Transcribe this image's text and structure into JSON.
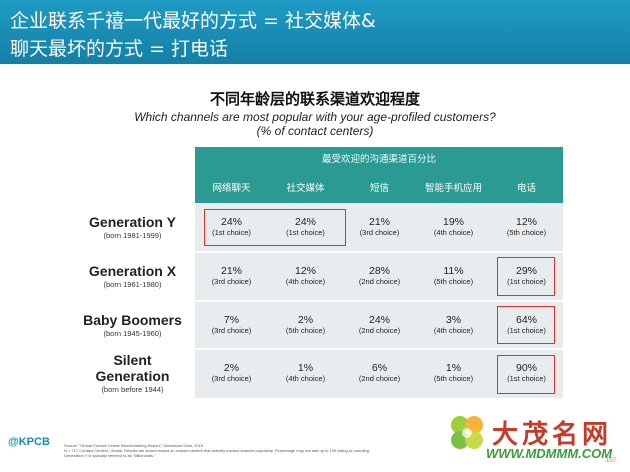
{
  "header": {
    "line1": "企业联系千禧一代最好的方式 = 社交媒体&",
    "line2": "聊天最坏的方式 = 打电话"
  },
  "title_cn": "不同年龄层的联系渠道欢迎程度",
  "subtitle_en_1": "Which channels are most popular with your age-profiled customers?",
  "subtitle_en_2": "(% of contact centers)",
  "table": {
    "caption": "最受欢迎的沟通渠道百分比",
    "columns": [
      "网络聊天",
      "社交媒体",
      "短信",
      "智能手机应用",
      "电话"
    ],
    "rows": [
      {
        "name": "Generation Y",
        "born": "(born 1981-1999)",
        "cells": [
          {
            "pct": "24%",
            "rank": "(1st choice)"
          },
          {
            "pct": "24%",
            "rank": "(1st choice)"
          },
          {
            "pct": "21%",
            "rank": "(3rd choice)"
          },
          {
            "pct": "19%",
            "rank": "(4th choice)"
          },
          {
            "pct": "12%",
            "rank": "(5th choice)"
          }
        ]
      },
      {
        "name": "Generation X",
        "born": "(born 1961-1980)",
        "cells": [
          {
            "pct": "21%",
            "rank": "(3rd choice)"
          },
          {
            "pct": "12%",
            "rank": "(4th choice)"
          },
          {
            "pct": "28%",
            "rank": "(2nd choice)"
          },
          {
            "pct": "11%",
            "rank": "(5th choice)"
          },
          {
            "pct": "29%",
            "rank": "(1st choice)"
          }
        ]
      },
      {
        "name": "Baby Boomers",
        "born": "(born 1945-1960)",
        "cells": [
          {
            "pct": "7%",
            "rank": "(3rd choice)"
          },
          {
            "pct": "2%",
            "rank": "(5th choice)"
          },
          {
            "pct": "24%",
            "rank": "(2nd choice)"
          },
          {
            "pct": "3%",
            "rank": "(4th choice)"
          },
          {
            "pct": "64%",
            "rank": "(1st choice)"
          }
        ]
      },
      {
        "name": "Silent Generation",
        "name_line1": "Silent",
        "name_line2": "Generation",
        "born": "(born before 1944)",
        "cells": [
          {
            "pct": "2%",
            "rank": "(3rd choice)"
          },
          {
            "pct": "1%",
            "rank": "(4th choice)"
          },
          {
            "pct": "6%",
            "rank": "(2nd choice)"
          },
          {
            "pct": "1%",
            "rank": "(5th choice)"
          },
          {
            "pct": "90%",
            "rank": "(1st choice)"
          }
        ]
      }
    ]
  },
  "footer": {
    "logo": "@KPCB",
    "source_1": "Source: \"Global Contact Center Benchmarking Report,\" Dimension Data, 2015.",
    "source_2": "N = 717 Contact Centers, Global. Results are shown based on contact centers that actively tracked channel popularity. Percentage may not add up to 100 owing to rounding.",
    "source_3": "Generation Y is typically referred to as \"Millennials.\"",
    "watermark_cn": "大茂名网",
    "watermark_url": "WWW.MDMMM.COM",
    "page": "107"
  },
  "colors": {
    "header": "#1a8fb8",
    "table_header": "#2a9a92",
    "row_bg": "#e9ecef",
    "highlight": "#d9342b"
  }
}
